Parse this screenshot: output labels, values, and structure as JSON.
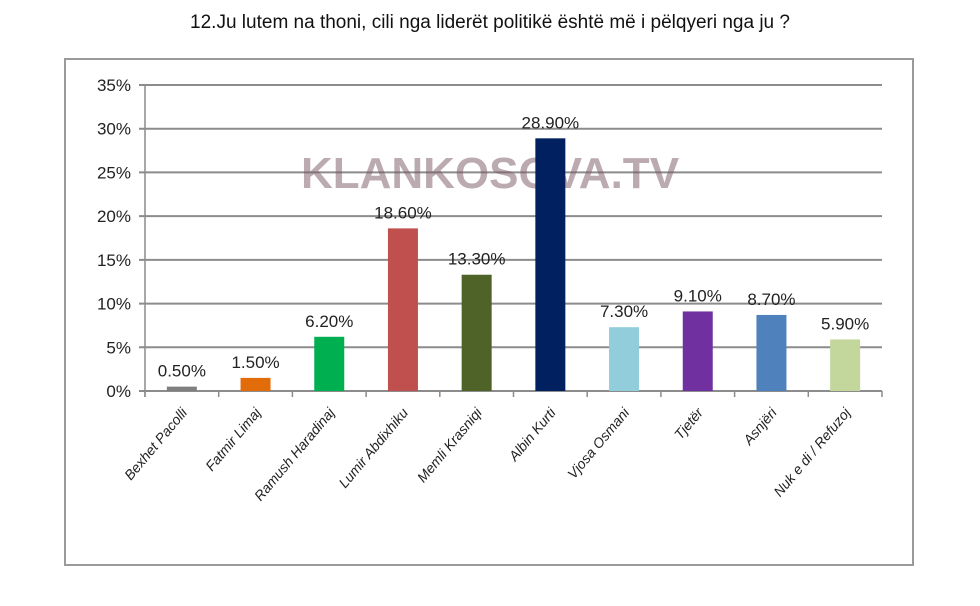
{
  "title": "12.Ju lutem na thoni, cili nga liderët politikë është më i pëlqyeri nga ju ?",
  "watermark": "KLANKOSOVA.TV",
  "chart_data": {
    "type": "bar",
    "title": "12.Ju lutem na thoni, cili nga liderët politikë është më i pëlqyeri nga ju ?",
    "xlabel": "",
    "ylabel": "",
    "ylim": [
      0,
      35
    ],
    "yticks": [
      "0%",
      "5%",
      "10%",
      "15%",
      "20%",
      "25%",
      "30%",
      "35%"
    ],
    "grid": true,
    "legend": "none",
    "categories": [
      "Bexhet Pacolli",
      "Fatmir Limaj",
      "Ramush Haradinaj",
      "Lumir Abdixhiku",
      "Memli Krasniqi",
      "Albin Kurti",
      "Vjosa Osmani",
      "Tjetër",
      "Asnjëri",
      "Nuk e di / Refuzoj"
    ],
    "values": [
      0.5,
      1.5,
      6.2,
      18.6,
      13.3,
      28.9,
      7.3,
      9.1,
      8.7,
      5.9
    ],
    "data_labels": [
      "0.50%",
      "1.50%",
      "6.20%",
      "18.60%",
      "13.30%",
      "28.90%",
      "7.30%",
      "9.10%",
      "8.70%",
      "5.90%"
    ],
    "colors": [
      "#7f7f7f",
      "#e36c0a",
      "#00b050",
      "#c0504d",
      "#4f6228",
      "#002060",
      "#92cddc",
      "#7030a0",
      "#4f81bd",
      "#c3d69b"
    ]
  }
}
